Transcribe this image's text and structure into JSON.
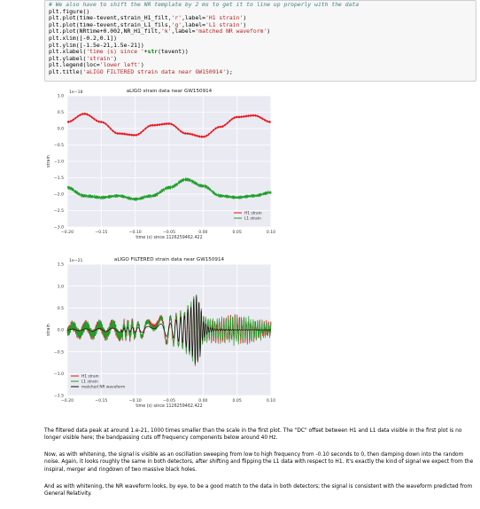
{
  "code_cell": {
    "lines": [
      [
        {
          "t": "c",
          "v": "# We also have to shift the NR template by 2 ms to get it to line up properly with the data"
        }
      ],
      [
        {
          "t": "n",
          "v": "plt.figure()"
        }
      ],
      [
        {
          "t": "n",
          "v": "plt.plot(time-tevent,strain_H1_filt,"
        },
        {
          "t": "s",
          "v": "'r'"
        },
        {
          "t": "n",
          "v": ",label="
        },
        {
          "t": "s",
          "v": "'H1 strain'"
        },
        {
          "t": "n",
          "v": ")"
        }
      ],
      [
        {
          "t": "n",
          "v": "plt.plot(time-tevent,strain_L1_fils,"
        },
        {
          "t": "s",
          "v": "'g'"
        },
        {
          "t": "n",
          "v": ",label="
        },
        {
          "t": "s",
          "v": "'L1 strain'"
        },
        {
          "t": "n",
          "v": ")"
        }
      ],
      [
        {
          "t": "n",
          "v": "plt.plot(NRtime+0.002,NR_H1_filt,"
        },
        {
          "t": "s",
          "v": "'k'"
        },
        {
          "t": "n",
          "v": ",label="
        },
        {
          "t": "s",
          "v": "'matched NR waveform'"
        },
        {
          "t": "n",
          "v": ")"
        }
      ],
      [
        {
          "t": "n",
          "v": "plt.xlim([-0.2,0.1])"
        }
      ],
      [
        {
          "t": "n",
          "v": "plt.ylim([-1.5e-21,1.5e-21])"
        }
      ],
      [
        {
          "t": "n",
          "v": "plt.xlabel("
        },
        {
          "t": "s",
          "v": "'time (s) since '"
        },
        {
          "t": "n",
          "v": "+"
        },
        {
          "t": "k",
          "v": "str"
        },
        {
          "t": "n",
          "v": "(tevent))"
        }
      ],
      [
        {
          "t": "n",
          "v": "plt.ylabel("
        },
        {
          "t": "s",
          "v": "'strain'"
        },
        {
          "t": "n",
          "v": ")"
        }
      ],
      [
        {
          "t": "n",
          "v": "plt.legend(loc="
        },
        {
          "t": "s",
          "v": "'lower left'"
        },
        {
          "t": "n",
          "v": ")"
        }
      ],
      [
        {
          "t": "n",
          "v": "plt.title("
        },
        {
          "t": "s",
          "v": "'aLIGO FILTERED strain data near GW150914'"
        },
        {
          "t": "n",
          "v": ");"
        }
      ]
    ]
  },
  "colors": {
    "h1": "#e8141a",
    "l1": "#1e9e2a",
    "nr": "#111111",
    "plot_bg": "#eaeaf2",
    "grid": "#ffffff"
  },
  "chart_data": [
    {
      "type": "line",
      "title": "aLIGO strain data near GW150914",
      "xlabel": "time (s) since 1126259462.422",
      "ylabel": "strain",
      "offset_text": "1e−18",
      "xlim": [
        -0.2,
        0.1
      ],
      "ylim": [
        -3.0,
        1.0
      ],
      "xticks": [
        -0.2,
        -0.15,
        -0.1,
        -0.05,
        0.0,
        0.05,
        0.1
      ],
      "xtick_labels": [
        "−0.20",
        "−0.15",
        "−0.10",
        "−0.05",
        "0.00",
        "0.05",
        "0.10"
      ],
      "yticks": [
        1.0,
        0.5,
        0.0,
        -0.5,
        -1.0,
        -1.5,
        -2.0,
        -2.5,
        -3.0
      ],
      "ytick_labels": [
        "1.0",
        "0.5",
        "0.0",
        "−0.5",
        "−1.0",
        "−1.5",
        "−2.0",
        "−2.5",
        "−3.0"
      ],
      "grid": true,
      "legend_loc": "lower right",
      "series": [
        {
          "name": "H1 strain",
          "color_key": "h1",
          "x": [
            -0.2,
            -0.175,
            -0.15,
            -0.125,
            -0.1,
            -0.075,
            -0.05,
            -0.025,
            0.0,
            0.025,
            0.05,
            0.075,
            0.1
          ],
          "y": [
            0.2,
            0.45,
            0.2,
            -0.15,
            -0.2,
            0.1,
            0.15,
            -0.15,
            -0.25,
            0.05,
            0.35,
            0.4,
            0.2
          ]
        },
        {
          "name": "L1 strain",
          "color_key": "l1",
          "x": [
            -0.2,
            -0.175,
            -0.15,
            -0.125,
            -0.1,
            -0.075,
            -0.05,
            -0.025,
            0.0,
            0.025,
            0.05,
            0.075,
            0.1
          ],
          "y": [
            -1.8,
            -2.05,
            -2.1,
            -2.05,
            -2.15,
            -2.05,
            -1.8,
            -1.55,
            -1.75,
            -2.05,
            -2.1,
            -2.05,
            -1.95
          ]
        }
      ]
    },
    {
      "type": "line",
      "title": "aLIGO FILTERED strain data near GW150914",
      "xlabel": "time (s) since 1126259462.422",
      "ylabel": "strain",
      "offset_text": "1e−21",
      "xlim": [
        -0.2,
        0.1
      ],
      "ylim": [
        -1.5,
        1.5
      ],
      "xticks": [
        -0.2,
        -0.15,
        -0.1,
        -0.05,
        0.0,
        0.05,
        0.1
      ],
      "xtick_labels": [
        "−0.20",
        "−0.15",
        "−0.10",
        "−0.05",
        "0.00",
        "0.05",
        "0.10"
      ],
      "yticks": [
        1.5,
        1.0,
        0.5,
        0.0,
        -0.5,
        -1.0,
        -1.5
      ],
      "ytick_labels": [
        "1.5",
        "1.0",
        "0.5",
        "0.0",
        "−0.5",
        "−1.0",
        "−1.5"
      ],
      "grid": true,
      "legend_loc": "lower left",
      "series": [
        {
          "name": "H1 strain",
          "color_key": "h1",
          "x": [
            -0.2,
            -0.1,
            -0.05,
            -0.03,
            -0.02,
            -0.01,
            -0.005,
            0.0,
            0.01,
            0.02,
            0.05,
            0.1
          ],
          "y": [
            0.1,
            0.15,
            0.3,
            0.4,
            0.6,
            0.8,
            0.6,
            0.3,
            0.2,
            0.2,
            0.25,
            0.1
          ]
        },
        {
          "name": "L1 strain",
          "color_key": "l1",
          "x": [
            -0.2,
            -0.1,
            -0.05,
            -0.03,
            -0.02,
            -0.01,
            -0.005,
            0.0,
            0.01,
            0.02,
            0.05,
            0.1
          ],
          "y": [
            0.1,
            0.15,
            0.3,
            0.4,
            0.6,
            0.8,
            0.6,
            0.3,
            0.2,
            0.2,
            0.25,
            0.1
          ]
        },
        {
          "name": "matched NR waveform",
          "color_key": "nr",
          "x": [
            -0.2,
            -0.1,
            -0.05,
            -0.03,
            -0.02,
            -0.01,
            -0.005,
            0.0,
            0.01,
            0.02,
            0.05,
            0.1
          ],
          "y": [
            0.02,
            0.05,
            0.15,
            0.3,
            0.5,
            0.8,
            0.65,
            0.2,
            0.05,
            0.02,
            0.01,
            0.0
          ]
        }
      ]
    }
  ],
  "prose": {
    "p1": "The filtered data peak at around 1.e-21, 1000 times smaller than the scale in the first plot. The \"DC\" offset between H1 and L1 data visible in the first plot is no longer visible here; the bandpassing cuts off frequency components below around 40 Hz.",
    "p2": "Now, as with whitening, the signal is visible as an oscillation sweeping from low to high frequency from -0.10 seconds to 0, then damping down into the random noise. Again, it looks roughly the same in both detectors, after shifting and flipping the L1 data with respect to H1. It's exactly the kind of signal we expect from the inspiral, merger and ringdown of two massive black holes.",
    "p3": "And as with whitening, the NR waveform looks, by eye, to be a good match to the data in both detectors; the signal is consistent with the waveform predicted from General Relativity."
  }
}
